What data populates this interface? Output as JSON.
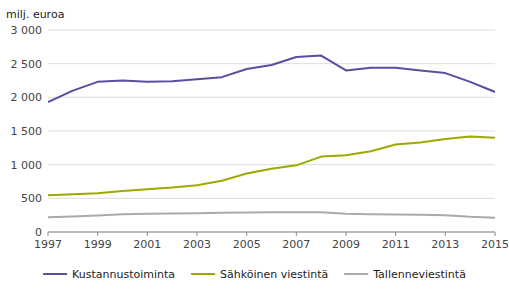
{
  "chart_data": {
    "type": "line",
    "y_label": "milj. euroa",
    "x": [
      1997,
      1998,
      1999,
      2000,
      2001,
      2002,
      2003,
      2004,
      2005,
      2006,
      2007,
      2008,
      2009,
      2010,
      2011,
      2012,
      2013,
      2014,
      2015
    ],
    "series": [
      {
        "name": "Kustannustoiminta",
        "color": "#5b4ea0",
        "values": [
          1930,
          2100,
          2230,
          2250,
          2230,
          2240,
          2270,
          2300,
          2420,
          2480,
          2600,
          2620,
          2400,
          2440,
          2440,
          2400,
          2360,
          2230,
          2080
        ]
      },
      {
        "name": "Sähköinen viestintä",
        "color": "#9aaa00",
        "values": [
          545,
          560,
          575,
          610,
          635,
          660,
          695,
          760,
          870,
          940,
          990,
          1120,
          1140,
          1200,
          1300,
          1330,
          1380,
          1420,
          1400
        ]
      },
      {
        "name": "Tallenneviestintä",
        "color": "#aaaaaa",
        "values": [
          220,
          230,
          245,
          265,
          270,
          275,
          280,
          285,
          290,
          295,
          295,
          295,
          270,
          265,
          260,
          255,
          250,
          225,
          210
        ]
      }
    ],
    "xlim": [
      1997,
      2015
    ],
    "xticks": [
      1997,
      1999,
      2001,
      2003,
      2005,
      2007,
      2009,
      2011,
      2013,
      2015
    ],
    "ylim": [
      0,
      3000
    ],
    "yticks": [
      0,
      500,
      {
        "value": 1000,
        "label": "1 000"
      },
      {
        "value": 1500,
        "label": "1 500"
      },
      {
        "value": 2000,
        "label": "2 000"
      },
      {
        "value": 2500,
        "label": "2 500"
      },
      {
        "value": 3000,
        "label": "3 000"
      }
    ],
    "grid": "y",
    "legend": "bottom"
  }
}
